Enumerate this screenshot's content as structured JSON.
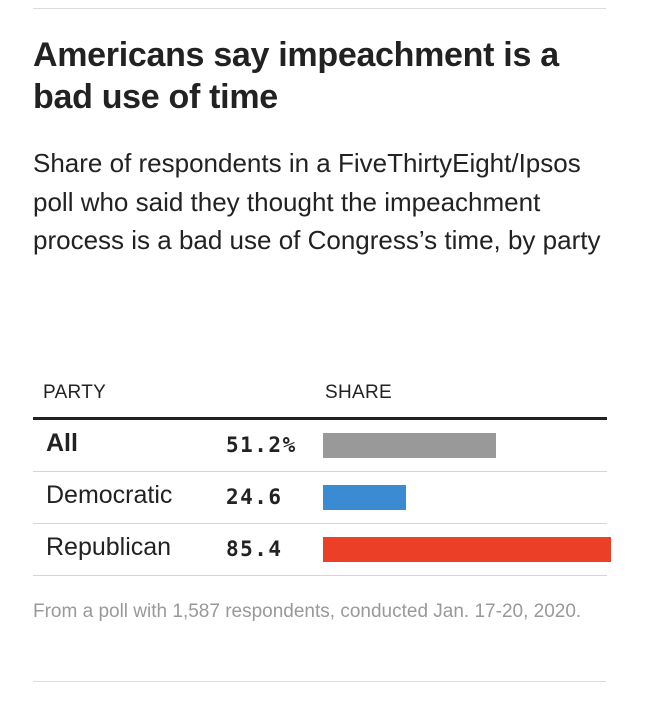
{
  "title": "Americans say impeachment is a bad use of time",
  "subtitle": "Share of respondents in a FiveThirtyEight/Ipsos poll who said they thought the impeachment process is a bad use of Congress’s time, by party",
  "columns": {
    "party": "PARTY",
    "share": "SHARE"
  },
  "footnote": "From a poll with 1,587 respondents, conducted Jan. 17-20, 2020.",
  "chart_data": {
    "type": "bar",
    "orientation": "horizontal",
    "categories": [
      "All",
      "Democratic",
      "Republican"
    ],
    "values": [
      51.2,
      24.6,
      85.4
    ],
    "value_labels": [
      "51.2%",
      "24.6",
      "85.4"
    ],
    "bar_colors": [
      "#999999",
      "#3a8bd1",
      "#ec3f27"
    ],
    "xlim": [
      0,
      85.4
    ],
    "grid": false
  }
}
